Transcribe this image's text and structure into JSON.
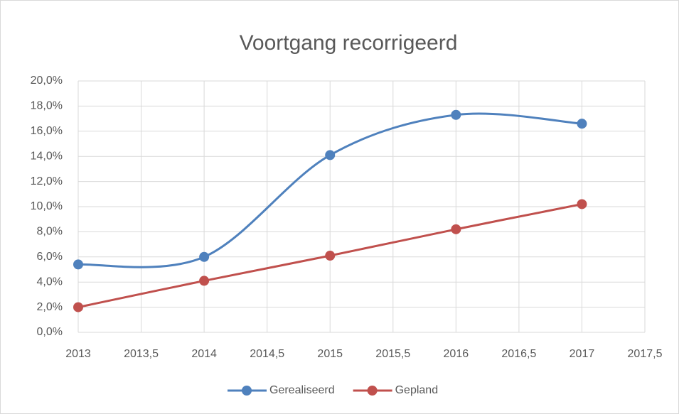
{
  "chart_data": {
    "type": "scatter",
    "title": "Voortgang recorrigeerd",
    "x": [
      2013,
      2014,
      2015,
      2016,
      2017
    ],
    "series": [
      {
        "name": "Gerealiseerd",
        "color": "#4f81bd",
        "values": [
          5.4,
          6.0,
          14.1,
          17.3,
          16.6
        ]
      },
      {
        "name": "Gepland",
        "color": "#c0504d",
        "values": [
          2.0,
          4.1,
          6.1,
          8.2,
          10.2
        ]
      }
    ],
    "smooth": true,
    "xlim": [
      2013,
      2017.5
    ],
    "xticks": [
      2013,
      {
        "value": 2013.5,
        "label": "2013,5"
      },
      2014,
      {
        "value": 2014.5,
        "label": "2014,5"
      },
      2015,
      {
        "value": 2015.5,
        "label": "2015,5"
      },
      2016,
      {
        "value": 2016.5,
        "label": "2016,5"
      },
      2017,
      {
        "value": 2017.5,
        "label": "2017,5"
      }
    ],
    "ylim": [
      0,
      20
    ],
    "yticks": [
      {
        "value": 0,
        "label": "0,0%"
      },
      {
        "value": 2,
        "label": "2,0%"
      },
      {
        "value": 4,
        "label": "4,0%"
      },
      {
        "value": 6,
        "label": "6,0%"
      },
      {
        "value": 8,
        "label": "8,0%"
      },
      {
        "value": 10,
        "label": "10,0%"
      },
      {
        "value": 12,
        "label": "12,0%"
      },
      {
        "value": 14,
        "label": "14,0%"
      },
      {
        "value": 16,
        "label": "16,0%"
      },
      {
        "value": 18,
        "label": "18,0%"
      },
      {
        "value": 20,
        "label": "20,0%"
      }
    ],
    "grid": true,
    "legend": "bottom"
  }
}
